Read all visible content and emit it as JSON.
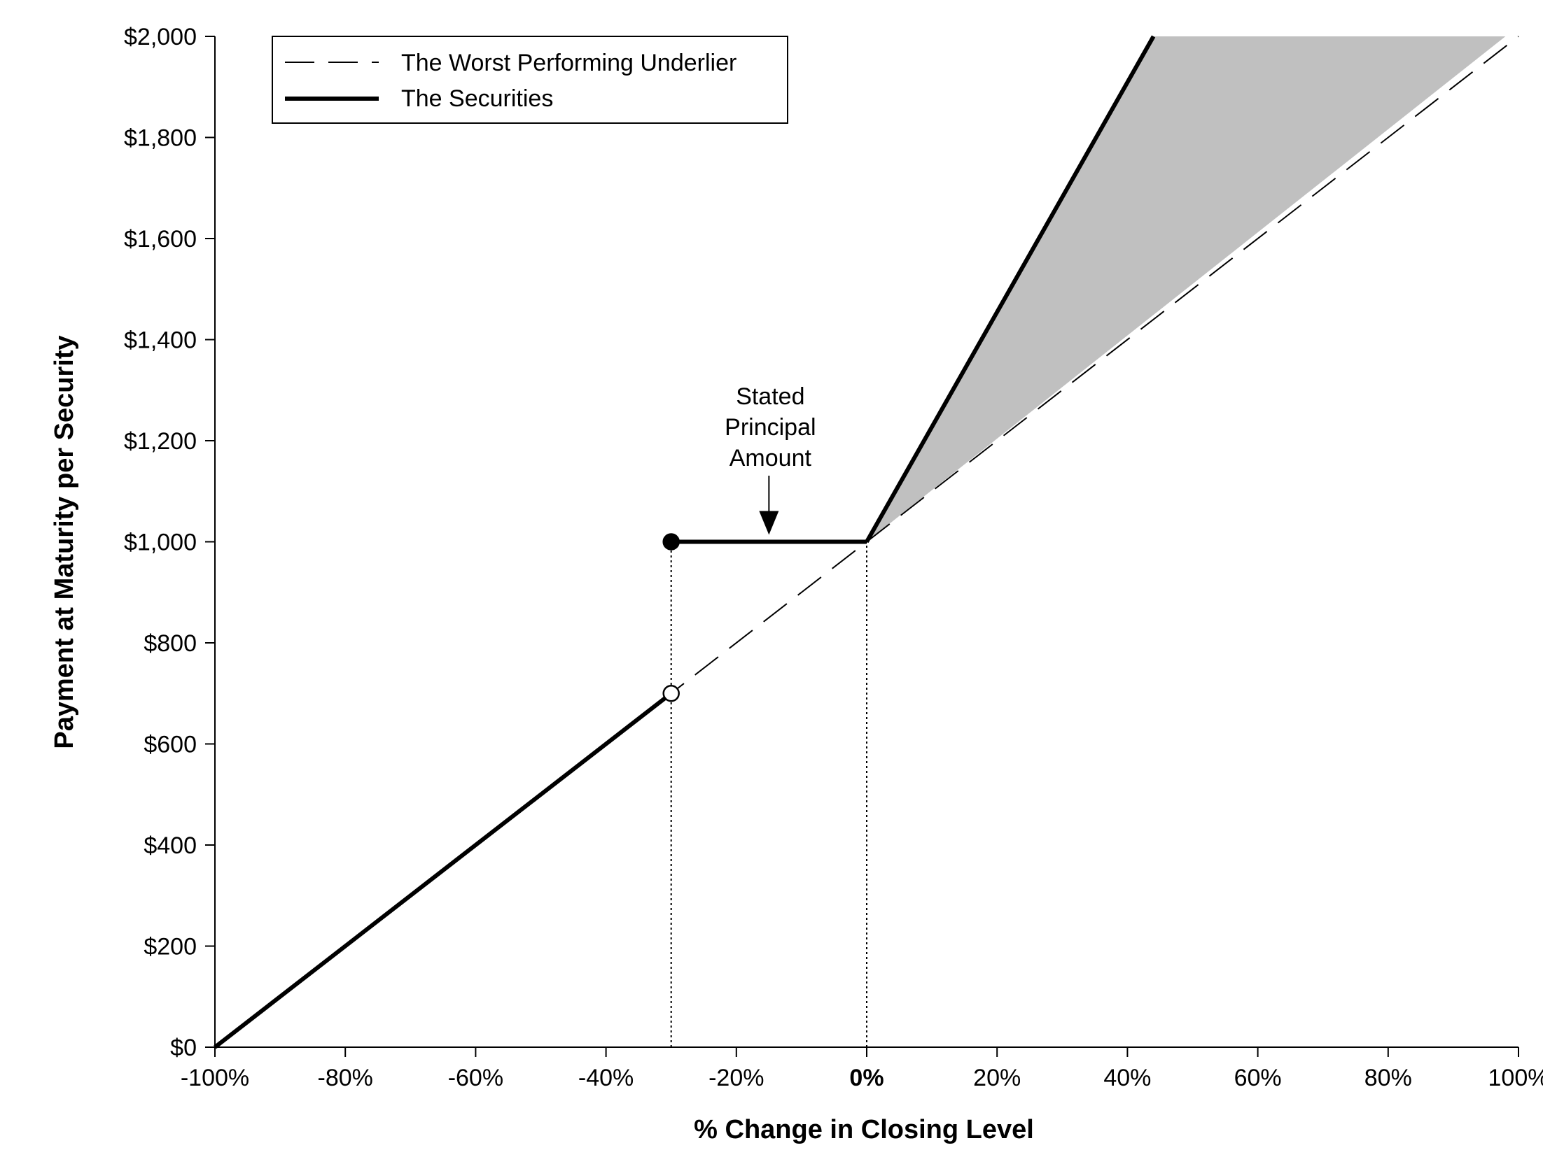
{
  "chart_data": {
    "type": "line",
    "xlabel": "% Change in Closing Level",
    "ylabel": "Payment at Maturity per Security",
    "xlim": [
      -100,
      100
    ],
    "ylim": [
      0,
      2000
    ],
    "x_ticks": [
      {
        "value": -100,
        "label": "-100%"
      },
      {
        "value": -80,
        "label": "-80%"
      },
      {
        "value": -60,
        "label": "-60%"
      },
      {
        "value": -40,
        "label": "-40%"
      },
      {
        "value": -20,
        "label": "-20%"
      },
      {
        "value": 0,
        "label": "0%",
        "bold": true
      },
      {
        "value": 20,
        "label": "20%"
      },
      {
        "value": 40,
        "label": "40%"
      },
      {
        "value": 60,
        "label": "60%"
      },
      {
        "value": 80,
        "label": "80%"
      },
      {
        "value": 100,
        "label": "100%"
      }
    ],
    "y_ticks": [
      {
        "value": 0,
        "label": "$0"
      },
      {
        "value": 200,
        "label": "$200"
      },
      {
        "value": 400,
        "label": "$400"
      },
      {
        "value": 600,
        "label": "$600"
      },
      {
        "value": 800,
        "label": "$800"
      },
      {
        "value": 1000,
        "label": "$1,000"
      },
      {
        "value": 1200,
        "label": "$1,200"
      },
      {
        "value": 1400,
        "label": "$1,400"
      },
      {
        "value": 1600,
        "label": "$1,600"
      },
      {
        "value": 1800,
        "label": "$1,800"
      },
      {
        "value": 2000,
        "label": "$2,000"
      }
    ],
    "grid": false,
    "legend": {
      "placement": "top-left",
      "entries": [
        {
          "name": "The Worst Performing Underlier",
          "style": "dashed"
        },
        {
          "name": "The Securities",
          "style": "solid-thick"
        }
      ]
    },
    "series": [
      {
        "name": "The Worst Performing Underlier",
        "style": "dashed",
        "points": [
          [
            -100,
            0
          ],
          [
            100,
            2000
          ]
        ]
      },
      {
        "name": "The Securities",
        "style": "solid-thick",
        "segments": [
          [
            [
              -100,
              0
            ],
            [
              -30,
              700
            ]
          ],
          [
            [
              -30,
              1000
            ],
            [
              0,
              1000
            ]
          ],
          [
            [
              0,
              1000
            ],
            [
              44,
              2000
            ]
          ]
        ]
      }
    ],
    "markers": [
      {
        "x": -30,
        "y": 1000,
        "fill": "filled"
      },
      {
        "x": -30,
        "y": 700,
        "fill": "open"
      }
    ],
    "reference_lines": [
      {
        "x": -30,
        "y_from": 0,
        "y_to": 1000,
        "style": "dotted"
      },
      {
        "x": 0,
        "y_from": 0,
        "y_to": 1000,
        "style": "dotted"
      }
    ],
    "shaded_region": {
      "color": "#c0c0c0",
      "points": [
        [
          0,
          1000
        ],
        [
          44,
          2000
        ],
        [
          98,
          2000
        ]
      ]
    },
    "annotation": {
      "lines": [
        "Stated",
        "Principal",
        "Amount"
      ],
      "arrow_to": {
        "x": -15,
        "y": 1000
      }
    },
    "colors": {
      "line": "#000000",
      "shade": "#c0c0c0",
      "background": "#ffffff"
    }
  }
}
